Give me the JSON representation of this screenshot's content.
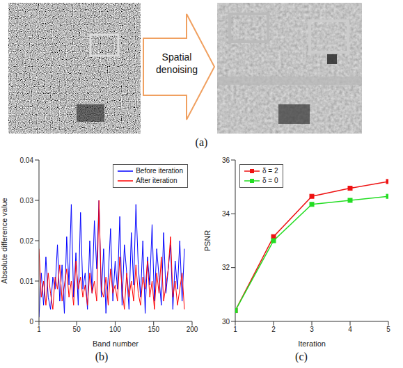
{
  "panel_a": {
    "panel_label": "(a)",
    "text": "Spatial denoising"
  },
  "chart_data": [
    {
      "type": "line",
      "panel_label": "(b)",
      "xlabel": "Band number",
      "ylabel": "Absolute difference value",
      "x": [
        1,
        4,
        7,
        10,
        13,
        16,
        19,
        22,
        25,
        28,
        31,
        34,
        37,
        40,
        43,
        46,
        49,
        52,
        55,
        58,
        61,
        64,
        67,
        70,
        73,
        76,
        79,
        82,
        85,
        88,
        91,
        94,
        97,
        100,
        103,
        106,
        109,
        112,
        115,
        118,
        121,
        124,
        127,
        130,
        133,
        136,
        139,
        142,
        145,
        148,
        151,
        154,
        157,
        160,
        163,
        166,
        169,
        172,
        175,
        178,
        181,
        184,
        187,
        190
      ],
      "xlim": [
        1,
        200
      ],
      "xticks": [
        1,
        50,
        100,
        150,
        200
      ],
      "ylim": [
        0,
        0.04
      ],
      "yticks": [
        0,
        0.01,
        0.02,
        0.03,
        0.04
      ],
      "legend": "upper right",
      "series": [
        {
          "name": "Before iteration",
          "color": "#0000ff",
          "values": [
            0.001,
            0.012,
            0.004,
            0.016,
            0.006,
            0.003,
            0.011,
            0.008,
            0.019,
            0.005,
            0.014,
            0.002,
            0.021,
            0.009,
            0.029,
            0.006,
            0.017,
            0.004,
            0.027,
            0.008,
            0.012,
            0.003,
            0.02,
            0.007,
            0.025,
            0.013,
            0.03,
            0.006,
            0.018,
            0.002,
            0.011,
            0.023,
            0.005,
            0.015,
            0.008,
            0.026,
            0.004,
            0.019,
            0.012,
            0.003,
            0.022,
            0.009,
            0.029,
            0.014,
            0.006,
            0.02,
            0.002,
            0.016,
            0.009,
            0.024,
            0.005,
            0.018,
            0.011,
            0.004,
            0.022,
            0.007,
            0.013,
            0.019,
            0.003,
            0.015,
            0.008,
            0.02,
            0.005,
            0.018
          ]
        },
        {
          "name": "After iteration",
          "color": "#ff0000",
          "values": [
            0.018,
            0.006,
            0.01,
            0.004,
            0.012,
            0.007,
            0.003,
            0.011,
            0.008,
            0.014,
            0.005,
            0.009,
            0.013,
            0.006,
            0.01,
            0.004,
            0.015,
            0.008,
            0.011,
            0.006,
            0.009,
            0.004,
            0.012,
            0.007,
            0.01,
            0.005,
            0.03,
            0.008,
            0.006,
            0.011,
            0.004,
            0.013,
            0.007,
            0.009,
            0.005,
            0.016,
            0.008,
            0.003,
            0.012,
            0.006,
            0.01,
            0.005,
            0.014,
            0.007,
            0.004,
            0.011,
            0.008,
            0.015,
            0.006,
            0.01,
            0.003,
            0.012,
            0.007,
            0.016,
            0.005,
            0.009,
            0.013,
            0.021,
            0.006,
            0.01,
            0.004,
            0.008,
            0.012,
            0.003
          ]
        }
      ]
    },
    {
      "type": "line",
      "panel_label": "(c)",
      "xlabel": "Iteration",
      "ylabel": "PSNR",
      "x": [
        1,
        2,
        3,
        4,
        5
      ],
      "xlim": [
        1,
        5
      ],
      "xticks": [
        1,
        2,
        3,
        4,
        5
      ],
      "ylim": [
        30,
        36
      ],
      "yticks": [
        30,
        32,
        34,
        36
      ],
      "legend": "upper left",
      "series": [
        {
          "name": "δ = 2",
          "color": "#ee1111",
          "marker": "square",
          "values": [
            30.4,
            33.15,
            34.65,
            34.95,
            35.2
          ]
        },
        {
          "name": "δ = 0",
          "color": "#22dd22",
          "marker": "square",
          "values": [
            30.4,
            33.0,
            34.35,
            34.5,
            34.65
          ]
        }
      ]
    }
  ]
}
